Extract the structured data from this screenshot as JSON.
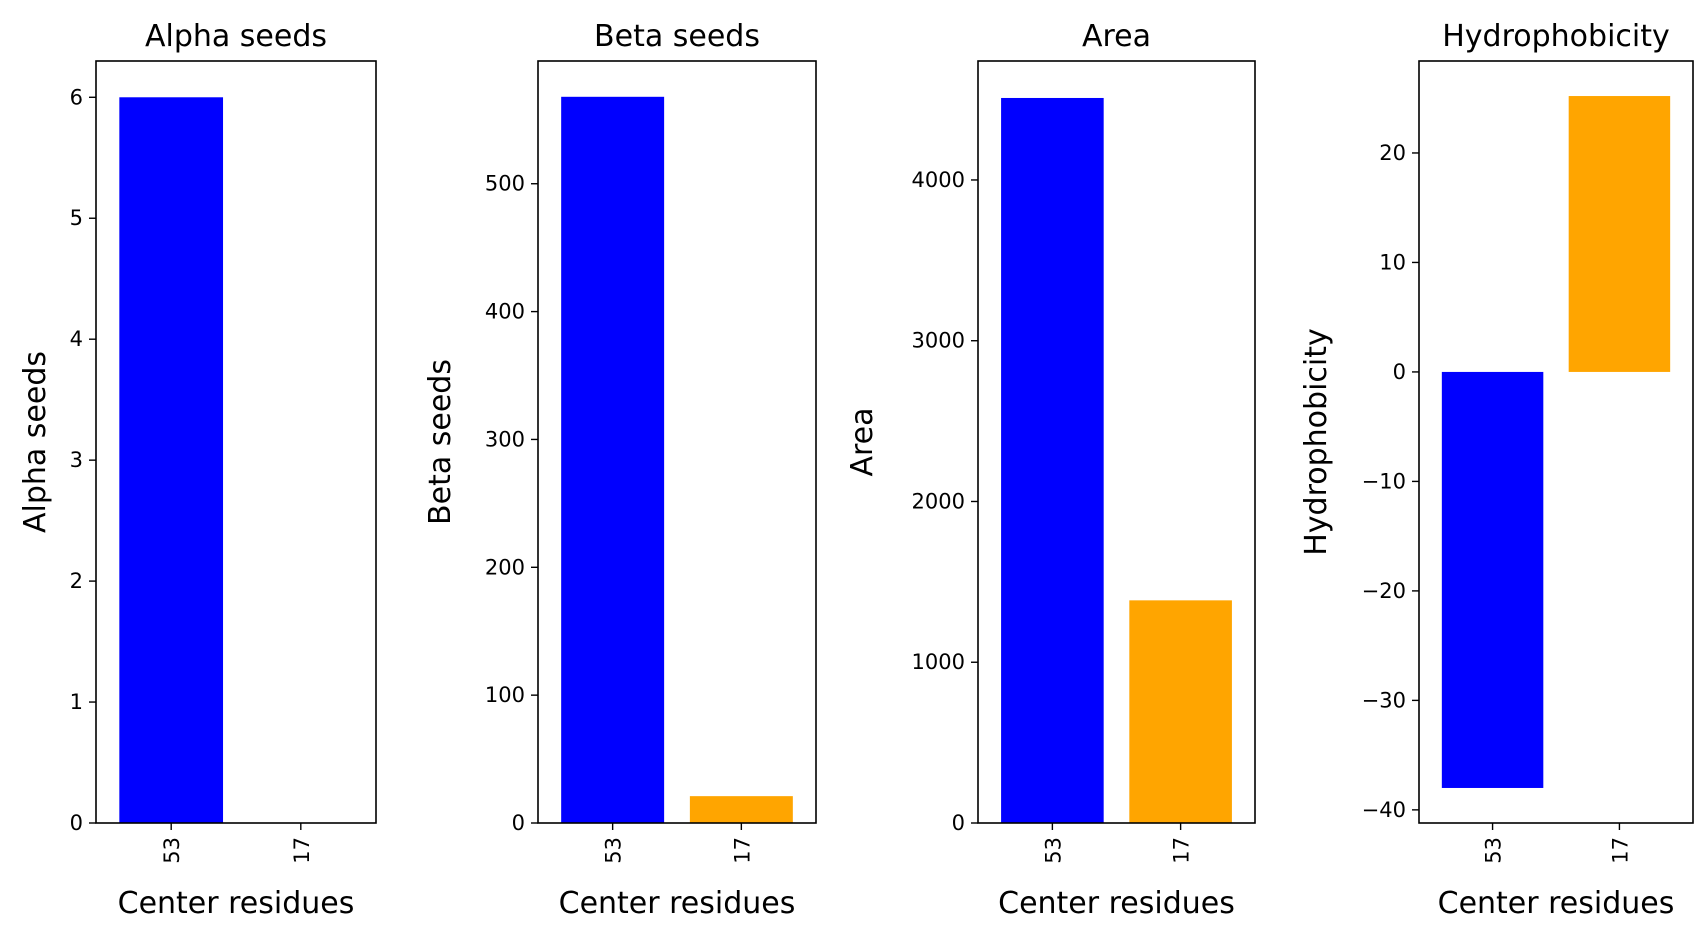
{
  "chart_data": [
    {
      "type": "bar",
      "title": "Alpha seeds",
      "xlabel": "Center residues",
      "ylabel": "Alpha seeds",
      "categories": [
        "53",
        "17"
      ],
      "values": [
        6,
        0
      ],
      "colors": [
        "#0000ff",
        "#ffa500"
      ],
      "ylim": [
        0,
        6.3
      ],
      "yticks": [
        0,
        1,
        2,
        3,
        4,
        5,
        6
      ],
      "ytick_labels": [
        "0",
        "1",
        "2",
        "3",
        "4",
        "5",
        "6"
      ]
    },
    {
      "type": "bar",
      "title": "Beta seeds",
      "xlabel": "Center residues",
      "ylabel": "Beta seeds",
      "categories": [
        "53",
        "17"
      ],
      "values": [
        568,
        21
      ],
      "colors": [
        "#0000ff",
        "#ffa500"
      ],
      "ylim": [
        0,
        596
      ],
      "yticks": [
        0,
        100,
        200,
        300,
        400,
        500
      ],
      "ytick_labels": [
        "0",
        "100",
        "200",
        "300",
        "400",
        "500"
      ]
    },
    {
      "type": "bar",
      "title": "Area",
      "xlabel": "Center residues",
      "ylabel": "Area",
      "categories": [
        "53",
        "17"
      ],
      "values": [
        4510,
        1385
      ],
      "colors": [
        "#0000ff",
        "#ffa500"
      ],
      "ylim": [
        0,
        4740
      ],
      "yticks": [
        0,
        1000,
        2000,
        3000,
        4000
      ],
      "ytick_labels": [
        "0",
        "1000",
        "2000",
        "3000",
        "4000"
      ]
    },
    {
      "type": "bar",
      "title": "Hydrophobicity",
      "xlabel": "Center residues",
      "ylabel": "Hydrophobicity",
      "categories": [
        "53",
        "17"
      ],
      "values": [
        -38,
        25.2
      ],
      "colors": [
        "#0000ff",
        "#ffa500"
      ],
      "ylim": [
        -41.2,
        28.4
      ],
      "yticks": [
        -40,
        -30,
        -20,
        -10,
        0,
        10,
        20
      ],
      "ytick_labels": [
        "−40",
        "−30",
        "−20",
        "−10",
        "0",
        "10",
        "20"
      ]
    }
  ]
}
